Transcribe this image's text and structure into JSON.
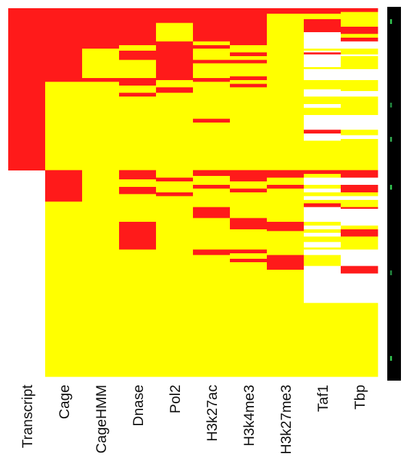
{
  "chart_data": {
    "type": "heatmap",
    "title": "",
    "xlabel": "",
    "ylabel": "",
    "grid": false,
    "colors": {
      "present": "#ff1a1a",
      "absent": "#ffff00",
      "missing": "#ffffff"
    },
    "columns": [
      "Transcript",
      "Cage",
      "CageHMM",
      "Dnase",
      "Pol2",
      "H3k27ac",
      "H3k4me3",
      "H3k27me3",
      "Taf1",
      "Tbp"
    ],
    "row_count": 1000,
    "note_values": "1 = present (red), 0 = absent (yellow), null = missing (white); rows ordered top to bottom",
    "blocks": [
      [
        [
          0,
          440,
          1
        ]
      ],
      [
        [
          0,
          200,
          1
        ],
        [
          200,
          440,
          0
        ],
        [
          440,
          525,
          1
        ],
        [
          525,
          1000,
          0
        ]
      ],
      [
        [
          0,
          110,
          1
        ],
        [
          110,
          190,
          0
        ],
        [
          190,
          200,
          1
        ],
        [
          200,
          1000,
          0
        ]
      ],
      [
        [
          0,
          100,
          1
        ],
        [
          100,
          115,
          0
        ],
        [
          115,
          140,
          1
        ],
        [
          140,
          190,
          0
        ],
        [
          190,
          210,
          1
        ],
        [
          210,
          230,
          0
        ],
        [
          230,
          240,
          1
        ],
        [
          240,
          440,
          0
        ],
        [
          440,
          465,
          1
        ],
        [
          465,
          485,
          0
        ],
        [
          485,
          505,
          1
        ],
        [
          505,
          580,
          0
        ],
        [
          580,
          655,
          1
        ],
        [
          655,
          1000,
          0
        ]
      ],
      [
        [
          0,
          40,
          1
        ],
        [
          40,
          90,
          0
        ],
        [
          90,
          195,
          1
        ],
        [
          195,
          215,
          0
        ],
        [
          215,
          230,
          1
        ],
        [
          230,
          460,
          0
        ],
        [
          460,
          470,
          1
        ],
        [
          470,
          500,
          0
        ],
        [
          500,
          510,
          1
        ],
        [
          510,
          1000,
          0
        ]
      ],
      [
        [
          0,
          90,
          1
        ],
        [
          90,
          100,
          0
        ],
        [
          100,
          110,
          1
        ],
        [
          110,
          140,
          0
        ],
        [
          140,
          150,
          1
        ],
        [
          150,
          190,
          0
        ],
        [
          190,
          200,
          1
        ],
        [
          200,
          300,
          0
        ],
        [
          300,
          310,
          1
        ],
        [
          310,
          440,
          0
        ],
        [
          440,
          455,
          1
        ],
        [
          455,
          480,
          0
        ],
        [
          480,
          490,
          1
        ],
        [
          490,
          540,
          0
        ],
        [
          540,
          570,
          1
        ],
        [
          570,
          655,
          0
        ],
        [
          655,
          670,
          1
        ],
        [
          670,
          1000,
          0
        ]
      ],
      [
        [
          0,
          100,
          1
        ],
        [
          100,
          120,
          0
        ],
        [
          120,
          130,
          1
        ],
        [
          130,
          140,
          0
        ],
        [
          140,
          150,
          1
        ],
        [
          150,
          185,
          0
        ],
        [
          185,
          195,
          1
        ],
        [
          195,
          205,
          0
        ],
        [
          205,
          215,
          1
        ],
        [
          215,
          440,
          0
        ],
        [
          440,
          470,
          1
        ],
        [
          470,
          490,
          0
        ],
        [
          490,
          500,
          1
        ],
        [
          500,
          570,
          0
        ],
        [
          570,
          600,
          1
        ],
        [
          600,
          655,
          0
        ],
        [
          655,
          665,
          1
        ],
        [
          665,
          680,
          0
        ],
        [
          680,
          690,
          1
        ],
        [
          690,
          1000,
          0
        ]
      ],
      [
        [
          0,
          15,
          1
        ],
        [
          15,
          440,
          0
        ],
        [
          440,
          460,
          1
        ],
        [
          460,
          480,
          0
        ],
        [
          480,
          490,
          1
        ],
        [
          490,
          580,
          0
        ],
        [
          580,
          605,
          1
        ],
        [
          605,
          670,
          0
        ],
        [
          670,
          710,
          1
        ],
        [
          710,
          1000,
          0
        ]
      ],
      [
        [
          0,
          15,
          1
        ],
        [
          15,
          30,
          0
        ],
        [
          30,
          65,
          1
        ],
        [
          65,
          110,
          null
        ],
        [
          110,
          115,
          0
        ],
        [
          115,
          120,
          null
        ],
        [
          120,
          125,
          1
        ],
        [
          125,
          160,
          null
        ],
        [
          160,
          165,
          0
        ],
        [
          165,
          195,
          null
        ],
        [
          195,
          220,
          0
        ],
        [
          220,
          240,
          null
        ],
        [
          240,
          260,
          0
        ],
        [
          260,
          270,
          null
        ],
        [
          270,
          290,
          0
        ],
        [
          290,
          330,
          null
        ],
        [
          330,
          340,
          1
        ],
        [
          340,
          360,
          null
        ],
        [
          360,
          440,
          0
        ],
        [
          440,
          450,
          1
        ],
        [
          450,
          460,
          0
        ],
        [
          460,
          480,
          null
        ],
        [
          480,
          490,
          0
        ],
        [
          490,
          500,
          null
        ],
        [
          500,
          510,
          0
        ],
        [
          510,
          520,
          null
        ],
        [
          520,
          530,
          0
        ],
        [
          530,
          540,
          1
        ],
        [
          540,
          580,
          null
        ],
        [
          580,
          590,
          0
        ],
        [
          590,
          600,
          null
        ],
        [
          600,
          610,
          0
        ],
        [
          610,
          620,
          null
        ],
        [
          620,
          635,
          0
        ],
        [
          635,
          650,
          null
        ],
        [
          650,
          655,
          0
        ],
        [
          655,
          670,
          null
        ],
        [
          670,
          700,
          0
        ],
        [
          700,
          800,
          null
        ],
        [
          800,
          1000,
          0
        ]
      ],
      [
        [
          0,
          10,
          1
        ],
        [
          10,
          50,
          0
        ],
        [
          50,
          70,
          1
        ],
        [
          70,
          80,
          0
        ],
        [
          80,
          90,
          1
        ],
        [
          90,
          110,
          null
        ],
        [
          110,
          125,
          0
        ],
        [
          125,
          130,
          null
        ],
        [
          130,
          165,
          0
        ],
        [
          165,
          195,
          null
        ],
        [
          195,
          225,
          0
        ],
        [
          225,
          240,
          null
        ],
        [
          240,
          290,
          0
        ],
        [
          290,
          330,
          null
        ],
        [
          330,
          345,
          0
        ],
        [
          345,
          355,
          null
        ],
        [
          355,
          440,
          0
        ],
        [
          440,
          460,
          1
        ],
        [
          460,
          480,
          null
        ],
        [
          480,
          500,
          1
        ],
        [
          500,
          510,
          0
        ],
        [
          510,
          520,
          null
        ],
        [
          520,
          540,
          0
        ],
        [
          540,
          545,
          1
        ],
        [
          545,
          590,
          null
        ],
        [
          590,
          600,
          0
        ],
        [
          600,
          620,
          1
        ],
        [
          620,
          655,
          0
        ],
        [
          655,
          700,
          null
        ],
        [
          700,
          720,
          1
        ],
        [
          720,
          800,
          null
        ],
        [
          800,
          1000,
          0
        ]
      ]
    ]
  }
}
